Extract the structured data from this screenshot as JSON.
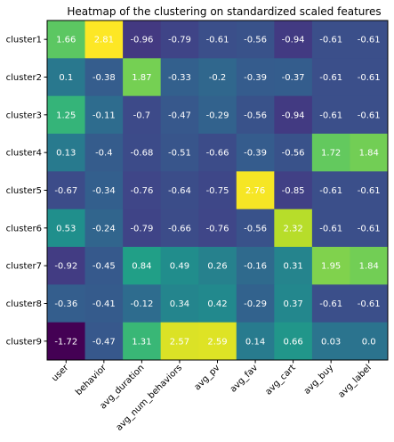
{
  "chart_data": {
    "type": "heatmap",
    "title": "Heatmap of the clustering on standardized scaled features",
    "rows": [
      "cluster1",
      "cluster2",
      "cluster3",
      "cluster4",
      "cluster5",
      "cluster6",
      "cluster7",
      "cluster8",
      "cluster9"
    ],
    "columns": [
      "user",
      "behavior",
      "avg_duration",
      "avg_num_behaviors",
      "avg_pv",
      "avg_fav",
      "avg_cart",
      "avg_buy",
      "avg_label"
    ],
    "values": [
      [
        1.66,
        2.81,
        -0.96,
        -0.79,
        -0.61,
        -0.56,
        -0.94,
        -0.61,
        -0.61
      ],
      [
        0.1,
        -0.38,
        1.87,
        -0.33,
        -0.2,
        -0.39,
        -0.37,
        -0.61,
        -0.61
      ],
      [
        1.25,
        -0.11,
        -0.7,
        -0.47,
        -0.29,
        -0.56,
        -0.94,
        -0.61,
        -0.61
      ],
      [
        0.13,
        -0.4,
        -0.68,
        -0.51,
        -0.66,
        -0.39,
        -0.56,
        1.72,
        1.84
      ],
      [
        -0.67,
        -0.34,
        -0.76,
        -0.64,
        -0.75,
        2.76,
        -0.85,
        -0.61,
        -0.61
      ],
      [
        0.53,
        -0.24,
        -0.79,
        -0.66,
        -0.76,
        -0.56,
        2.32,
        -0.61,
        -0.61
      ],
      [
        -0.92,
        -0.45,
        0.84,
        0.49,
        0.26,
        -0.16,
        0.31,
        1.95,
        1.84
      ],
      [
        -0.36,
        -0.41,
        -0.12,
        0.34,
        0.42,
        -0.29,
        0.37,
        -0.61,
        -0.61
      ],
      [
        -1.72,
        -0.47,
        1.31,
        2.57,
        2.59,
        0.14,
        0.66,
        0.03,
        "0.0"
      ]
    ],
    "colormap": "viridis",
    "value_range": [
      -1.72,
      2.81
    ],
    "annotation_color": "#ffffff",
    "grid": false
  }
}
